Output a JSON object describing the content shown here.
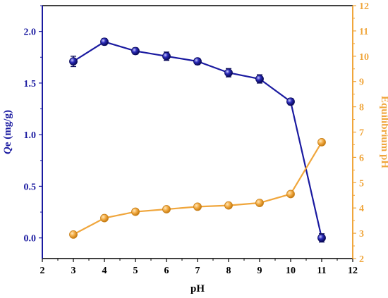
{
  "chart_data": {
    "type": "line",
    "title": "",
    "xlabel": "pH",
    "xlim": [
      2,
      12
    ],
    "x_ticks": [
      2,
      3,
      4,
      5,
      6,
      7,
      8,
      9,
      10,
      11,
      12
    ],
    "left_axis": {
      "label_italic": "Q",
      "label_rest": "e (mg/g)",
      "ylim": [
        -0.2,
        2.25
      ],
      "ticks": [
        "0.0",
        "0.5",
        "1.0",
        "1.5",
        "2.0"
      ],
      "color": "#1a1aa0"
    },
    "right_axis": {
      "label": "Equilibrium pH",
      "ylim": [
        2,
        12
      ],
      "ticks": [
        2,
        3,
        4,
        5,
        6,
        7,
        8,
        9,
        10,
        11,
        12
      ],
      "color": "#f0a63c"
    },
    "x": [
      3,
      4,
      5,
      6,
      7,
      8,
      9,
      10,
      11
    ],
    "series": [
      {
        "axis": "left",
        "color": "#1a1aa0",
        "values": [
          1.71,
          1.9,
          1.81,
          1.76,
          1.71,
          1.6,
          1.54,
          1.32,
          0.0
        ],
        "errors": [
          0.05,
          0.03,
          0.03,
          0.04,
          0.03,
          0.04,
          0.04,
          0.03,
          0.04
        ]
      },
      {
        "axis": "right",
        "color": "#f0a63c",
        "values": [
          2.95,
          3.6,
          3.85,
          3.95,
          4.05,
          4.1,
          4.2,
          4.55,
          6.6
        ]
      }
    ],
    "grid": false,
    "legend": "none"
  }
}
